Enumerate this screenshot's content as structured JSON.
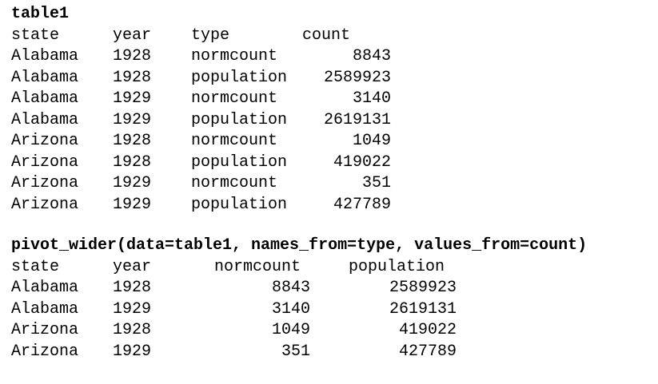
{
  "table1": {
    "title": "table1",
    "headers": {
      "state": "state",
      "year": "year",
      "type": "type",
      "count": "count"
    },
    "rows": [
      {
        "state": "Alabama",
        "year": "1928",
        "type": "normcount",
        "count": "8843"
      },
      {
        "state": "Alabama",
        "year": "1928",
        "type": "population",
        "count": "2589923"
      },
      {
        "state": "Alabama",
        "year": "1929",
        "type": "normcount",
        "count": "3140"
      },
      {
        "state": "Alabama",
        "year": "1929",
        "type": "population",
        "count": "2619131"
      },
      {
        "state": "Arizona",
        "year": "1928",
        "type": "normcount",
        "count": "1049"
      },
      {
        "state": "Arizona",
        "year": "1928",
        "type": "population",
        "count": "419022"
      },
      {
        "state": "Arizona",
        "year": "1929",
        "type": "normcount",
        "count": "351"
      },
      {
        "state": "Arizona",
        "year": "1929",
        "type": "population",
        "count": "427789"
      }
    ]
  },
  "pivot": {
    "title": "pivot_wider(data=table1, names_from=type, values_from=count)",
    "headers": {
      "state": "state",
      "year": "year",
      "normcount": "normcount",
      "population": "population"
    },
    "rows": [
      {
        "state": "Alabama",
        "year": "1928",
        "normcount": "8843",
        "population": "2589923"
      },
      {
        "state": "Alabama",
        "year": "1929",
        "normcount": "3140",
        "population": "2619131"
      },
      {
        "state": "Arizona",
        "year": "1928",
        "normcount": "1049",
        "population": "419022"
      },
      {
        "state": "Arizona",
        "year": "1929",
        "normcount": "351",
        "population": "427789"
      }
    ]
  }
}
